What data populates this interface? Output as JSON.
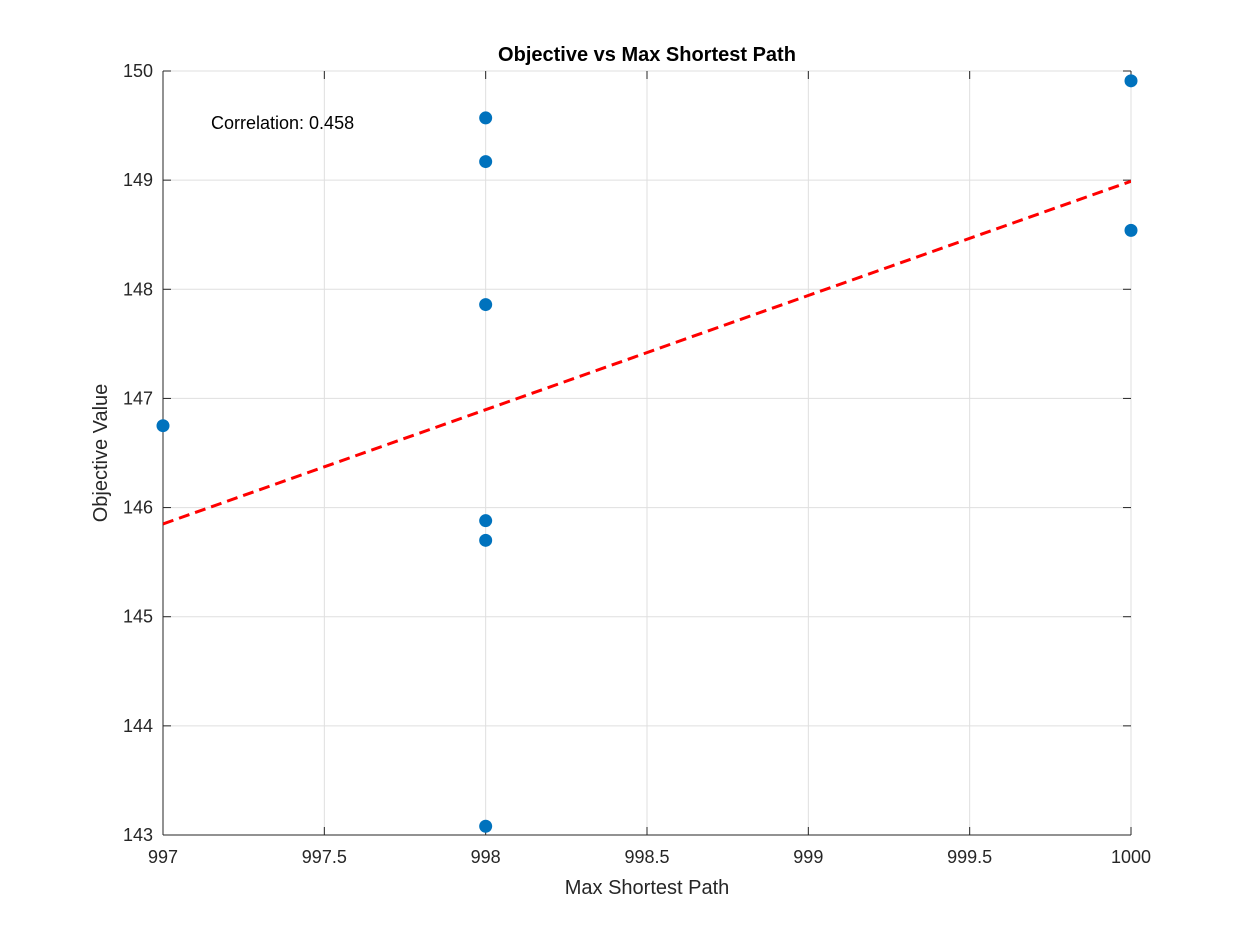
{
  "chart_data": {
    "type": "scatter",
    "title": "Objective vs Max Shortest Path",
    "xlabel": "Max Shortest Path",
    "ylabel": "Objective Value",
    "xlim": [
      997,
      1000
    ],
    "ylim": [
      143,
      150
    ],
    "xticks": [
      "997",
      "997.5",
      "998",
      "998.5",
      "999",
      "999.5",
      "1000"
    ],
    "yticks": [
      "143",
      "144",
      "145",
      "146",
      "147",
      "148",
      "149",
      "150"
    ],
    "grid": true,
    "annotation": "Correlation: 0.458",
    "series": [
      {
        "marker": "filled-circle",
        "color": "#0072BD",
        "points": [
          {
            "x": 997,
            "y": 146.75
          },
          {
            "x": 998,
            "y": 149.57
          },
          {
            "x": 998,
            "y": 149.17
          },
          {
            "x": 998,
            "y": 147.86
          },
          {
            "x": 998,
            "y": 145.88
          },
          {
            "x": 998,
            "y": 145.7
          },
          {
            "x": 998,
            "y": 143.08
          },
          {
            "x": 1000,
            "y": 149.91
          },
          {
            "x": 1000,
            "y": 148.54
          }
        ]
      }
    ],
    "trendline": {
      "style": "dashed",
      "color": "#FF0000",
      "x": [
        997,
        1000
      ],
      "y": [
        145.85,
        148.99
      ]
    }
  }
}
